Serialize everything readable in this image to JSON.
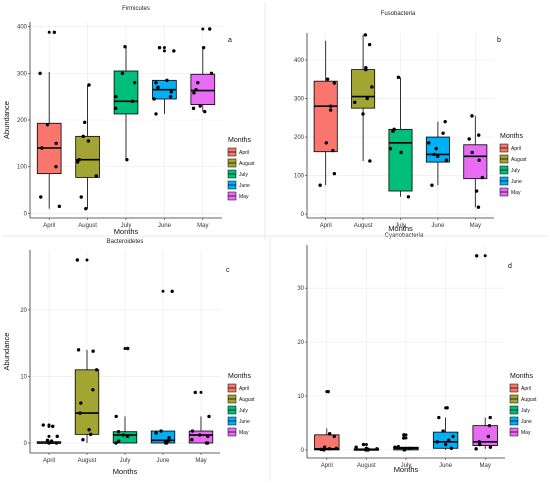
{
  "colors": {
    "April": "#f8766d",
    "August": "#a3a533",
    "July": "#00bf7d",
    "June": "#00b0f6",
    "May": "#e76bf3"
  },
  "chart_data": [
    {
      "type": "boxplot",
      "id": "firmicutes",
      "title": "Firmicutes",
      "panel_letter": "a",
      "xlabel": "Months",
      "ylabel": "Abundance",
      "ylim": [
        -10,
        410
      ],
      "yticks": [
        0,
        100,
        200,
        300,
        400
      ],
      "categories": [
        "April",
        "August",
        "July",
        "June",
        "May"
      ],
      "boxes": [
        {
          "category": "April",
          "min": 10,
          "q1": 85,
          "median": 140,
          "q3": 193,
          "max": 303,
          "outliers": [
            388
          ]
        },
        {
          "category": "August",
          "min": 10,
          "q1": 77,
          "median": 115,
          "q3": 165,
          "max": 275,
          "outliers": []
        },
        {
          "category": "July",
          "min": 115,
          "q1": 213,
          "median": 240,
          "q3": 305,
          "max": 357,
          "outliers": []
        },
        {
          "category": "June",
          "min": 213,
          "q1": 245,
          "median": 265,
          "q3": 285,
          "max": 285,
          "outliers": [
            348,
            355
          ]
        },
        {
          "category": "May",
          "min": 218,
          "q1": 233,
          "median": 263,
          "q3": 298,
          "max": 355,
          "outliers": [
            395
          ]
        }
      ],
      "points": {
        "April": [
          388,
          300,
          190,
          150,
          140,
          100,
          35,
          15
        ],
        "August": [
          275,
          195,
          165,
          155,
          115,
          110,
          80,
          35,
          10
        ],
        "July": [
          357,
          300,
          280,
          250,
          240,
          225,
          115
        ],
        "June": [
          355,
          348,
          285,
          280,
          270,
          260,
          250,
          245,
          213
        ],
        "May": [
          395,
          355,
          300,
          280,
          265,
          258,
          230,
          225,
          218
        ]
      },
      "legend": {
        "title": "Months",
        "entries": [
          "April",
          "August",
          "July",
          "June",
          "May"
        ]
      }
    },
    {
      "type": "boxplot",
      "id": "fusobacteria",
      "title": "Fusobacteria",
      "panel_letter": "b",
      "xlabel": "Months",
      "ylabel": "",
      "ylim": [
        -10,
        470
      ],
      "yticks": [
        0,
        100,
        200,
        300,
        400
      ],
      "categories": [
        "April",
        "August",
        "July",
        "June",
        "May"
      ],
      "boxes": [
        {
          "category": "April",
          "min": 75,
          "q1": 162,
          "median": 280,
          "q3": 345,
          "max": 450,
          "outliers": []
        },
        {
          "category": "August",
          "min": 138,
          "q1": 275,
          "median": 305,
          "q3": 375,
          "max": 465,
          "outliers": []
        },
        {
          "category": "July",
          "min": 45,
          "q1": 60,
          "median": 185,
          "q3": 220,
          "max": 355,
          "outliers": []
        },
        {
          "category": "June",
          "min": 75,
          "q1": 135,
          "median": 155,
          "q3": 200,
          "max": 240,
          "outliers": []
        },
        {
          "category": "May",
          "min": 18,
          "q1": 92,
          "median": 150,
          "q3": 180,
          "max": 255,
          "outliers": []
        }
      ],
      "points": {
        "April": [
          350,
          340,
          280,
          270,
          185,
          165,
          105,
          75
        ],
        "August": [
          465,
          440,
          380,
          375,
          330,
          300,
          290,
          260,
          138
        ],
        "July": [
          355,
          220,
          215,
          170,
          160,
          45
        ],
        "June": [
          240,
          210,
          185,
          170,
          155,
          150,
          140,
          75
        ],
        "May": [
          255,
          205,
          195,
          160,
          140,
          95,
          60,
          18
        ]
      },
      "legend": {
        "title": "Months",
        "entries": [
          "April",
          "August",
          "July",
          "June",
          "May"
        ]
      }
    },
    {
      "type": "boxplot",
      "id": "bacteroidetes",
      "title": "Bacteroidetes",
      "panel_letter": "c",
      "xlabel": "Months",
      "ylabel": "Abundance",
      "ylim": [
        -1.5,
        29
      ],
      "yticks": [
        0,
        10,
        20
      ],
      "categories": [
        "April",
        "August",
        "July",
        "June",
        "May"
      ],
      "boxes": [
        {
          "category": "April",
          "min": 0,
          "q1": 0,
          "median": 0,
          "q3": 0.2,
          "max": 0.4,
          "outliers": [
            1.0,
            2.5,
            2.7
          ]
        },
        {
          "category": "August",
          "min": 0,
          "q1": 1.3,
          "median": 4.5,
          "q3": 11,
          "max": 14,
          "outliers": [
            27.5
          ]
        },
        {
          "category": "July",
          "min": 0,
          "q1": 0,
          "median": 1.2,
          "q3": 1.7,
          "max": 4,
          "outliers": [
            14.2
          ]
        },
        {
          "category": "June",
          "min": 0,
          "q1": 0,
          "median": 0.4,
          "q3": 1.8,
          "max": 1.8,
          "outliers": [
            22.8
          ]
        },
        {
          "category": "May",
          "min": 0,
          "q1": 0,
          "median": 1.2,
          "q3": 1.8,
          "max": 4,
          "outliers": [
            7.6
          ]
        }
      ],
      "points": {
        "April": [
          0,
          0,
          0.3,
          0.4,
          0.1,
          1.0,
          2.5,
          2.7
        ],
        "August": [
          27.5,
          14,
          13.8,
          11,
          8,
          6,
          4.5,
          2,
          1.3,
          0.5
        ],
        "July": [
          14.2,
          4,
          1.7,
          1.2,
          1.0,
          0.3,
          0
        ],
        "June": [
          22.8,
          1.8,
          1.5,
          0.8,
          0.4,
          0.2,
          0,
          0
        ],
        "May": [
          7.6,
          4,
          1.8,
          1.2,
          1.0,
          0.5,
          0,
          0
        ]
      },
      "legend": {
        "title": "Months",
        "entries": [
          "April",
          "August",
          "July",
          "June",
          "May"
        ]
      }
    },
    {
      "type": "boxplot",
      "id": "cyanobacteria",
      "title": "Cyanobacteria",
      "panel_letter": "d",
      "xlabel": "Months",
      "ylabel": "",
      "ylim": [
        -1.5,
        38
      ],
      "yticks": [
        0,
        10,
        20,
        30
      ],
      "categories": [
        "April",
        "August",
        "July",
        "June",
        "May"
      ],
      "boxes": [
        {
          "category": "April",
          "min": 0,
          "q1": 0,
          "median": 0.2,
          "q3": 2.8,
          "max": 4,
          "outliers": [
            10.8
          ]
        },
        {
          "category": "August",
          "min": 0,
          "q1": 0,
          "median": 0,
          "q3": 0.2,
          "max": 0.6,
          "outliers": [
            1.0
          ]
        },
        {
          "category": "July",
          "min": 0,
          "q1": 0,
          "median": 0.3,
          "q3": 0.5,
          "max": 0.6,
          "outliers": [
            2.2,
            2.8
          ]
        },
        {
          "category": "June",
          "min": 0,
          "q1": 0.3,
          "median": 1.5,
          "q3": 3.3,
          "max": 6,
          "outliers": [
            7.8
          ]
        },
        {
          "category": "May",
          "min": 0.2,
          "q1": 0.8,
          "median": 1.5,
          "q3": 4.5,
          "max": 6,
          "outliers": [
            36
          ]
        }
      ],
      "points": {
        "April": [
          10.8,
          3,
          2.5,
          0.5,
          0.3,
          0.2,
          0.1,
          0
        ],
        "August": [
          1.0,
          0.5,
          0.3,
          0.2,
          0.1,
          0,
          0,
          0
        ],
        "July": [
          2.8,
          2.2,
          0.6,
          0.5,
          0.3,
          0.1,
          0
        ],
        "June": [
          7.8,
          6,
          3.5,
          2.5,
          1.8,
          1.5,
          1.0,
          0.3
        ],
        "May": [
          36,
          6,
          4.5,
          2.5,
          1.5,
          1.0,
          0.5,
          0.2
        ]
      },
      "legend": {
        "title": "Months",
        "entries": [
          "April",
          "August",
          "July",
          "June",
          "May"
        ]
      }
    }
  ]
}
